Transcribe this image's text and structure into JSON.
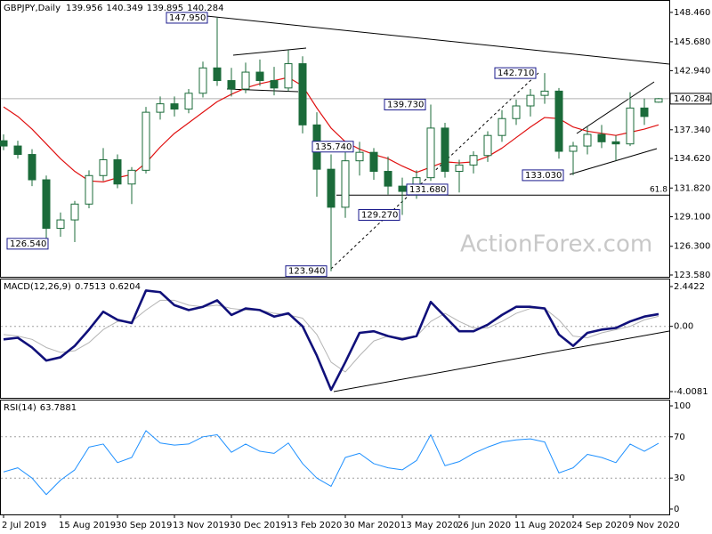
{
  "chart_data": [
    {
      "type": "candlestick",
      "title": "GBPJPY,Daily",
      "categories": [
        "2 Jul 2019",
        null,
        null,
        null,
        "15 Aug 2019",
        null,
        null,
        null,
        "30 Sep 2019",
        null,
        null,
        null,
        "13 Nov 2019",
        null,
        null,
        null,
        "30 Dec 2019",
        null,
        null,
        null,
        "13 Feb 2020",
        null,
        null,
        null,
        "30 Mar 2020",
        null,
        null,
        null,
        "13 May 2020",
        null,
        null,
        null,
        "26 Jun 2020",
        null,
        null,
        null,
        "11 Aug 2020",
        null,
        null,
        null,
        "24 Sep 2020",
        null,
        null,
        null,
        "9 Nov 2020",
        null,
        null
      ],
      "open": [
        136.3,
        135.8,
        135.0,
        132.6,
        128.0,
        128.8,
        130.3,
        133.0,
        134.5,
        132.2,
        133.5,
        139.0,
        139.8,
        139.3,
        140.8,
        143.2,
        142.0,
        141.2,
        142.8,
        142.0,
        141.3,
        143.6,
        137.8,
        133.6,
        130.0,
        134.4,
        135.2,
        133.4,
        132.0,
        131.5,
        132.8,
        137.5,
        133.4,
        134.0,
        134.9,
        136.8,
        138.4,
        139.6,
        140.6,
        141.0,
        135.3,
        135.8,
        136.9,
        136.2,
        136.0,
        139.4,
        139.956
      ],
      "high": [
        136.9,
        136.3,
        135.5,
        133.0,
        129.5,
        130.6,
        133.5,
        135.6,
        135.0,
        133.8,
        139.5,
        140.5,
        140.5,
        141.2,
        143.8,
        147.95,
        143.2,
        143.7,
        144.0,
        143.3,
        144.9,
        144.3,
        139.0,
        135.0,
        135.2,
        136.2,
        135.6,
        134.8,
        132.8,
        133.5,
        139.73,
        138.0,
        134.5,
        135.3,
        137.2,
        139.2,
        140.2,
        141.2,
        142.71,
        141.3,
        136.2,
        137.6,
        137.8,
        136.8,
        140.9,
        140.3,
        140.349
      ],
      "low": [
        135.4,
        134.6,
        132.0,
        126.54,
        127.2,
        126.7,
        129.9,
        132.5,
        131.8,
        130.3,
        133.2,
        138.3,
        138.6,
        138.9,
        140.4,
        141.5,
        140.5,
        140.8,
        141.5,
        140.6,
        141.0,
        137.0,
        131.0,
        123.94,
        129.0,
        133.0,
        132.6,
        131.2,
        129.27,
        130.8,
        132.5,
        132.8,
        131.4,
        133.2,
        134.3,
        136.2,
        137.8,
        138.6,
        139.8,
        134.6,
        133.03,
        135.0,
        135.6,
        134.4,
        135.8,
        137.8,
        139.895
      ],
      "close": [
        135.8,
        135.0,
        132.6,
        128.0,
        128.8,
        130.3,
        133.0,
        134.5,
        132.2,
        133.5,
        139.0,
        139.8,
        139.3,
        140.8,
        143.2,
        142.0,
        141.2,
        142.8,
        142.0,
        141.3,
        143.6,
        137.8,
        133.6,
        130.0,
        134.4,
        135.2,
        133.4,
        132.0,
        131.5,
        132.8,
        137.5,
        133.4,
        134.0,
        134.9,
        136.8,
        138.4,
        139.6,
        140.6,
        141.0,
        135.3,
        135.8,
        136.9,
        136.2,
        136.0,
        139.4,
        138.6,
        140.284
      ],
      "color": "#1b6b3a",
      "ma": {
        "color": "#e01010",
        "values": [
          139.5,
          138.6,
          137.4,
          136.0,
          134.6,
          133.4,
          132.5,
          132.4,
          132.8,
          133.1,
          134.2,
          135.7,
          137.0,
          138.0,
          139.0,
          140.0,
          140.7,
          141.3,
          141.7,
          142.0,
          142.3,
          141.5,
          139.4,
          137.5,
          136.2,
          135.5,
          135.0,
          134.6,
          133.9,
          133.3,
          133.8,
          134.3,
          134.2,
          134.3,
          134.8,
          135.6,
          136.6,
          137.6,
          138.5,
          138.4,
          137.6,
          137.2,
          137.0,
          136.8,
          137.1,
          137.4,
          137.8
        ]
      },
      "ylim": [
        123.41,
        149.55
      ],
      "yticks": [
        {
          "value": 148.46,
          "label": "148.460"
        },
        {
          "value": 145.68,
          "label": "145.680"
        },
        {
          "value": 142.94,
          "label": "142.940"
        },
        {
          "value": 137.34,
          "label": "137.340"
        },
        {
          "value": 134.62,
          "label": "134.620"
        },
        {
          "value": 131.82,
          "label": "131.820"
        },
        {
          "value": 129.1,
          "label": "129.100"
        },
        {
          "value": 126.3,
          "label": "126.300"
        },
        {
          "value": 123.58,
          "label": "123.580"
        }
      ],
      "annotations": [
        {
          "value": 147.95,
          "label": "147.950"
        },
        {
          "value": 142.71,
          "label": "142.710"
        },
        {
          "value": 139.73,
          "label": "139.730"
        },
        {
          "value": 135.74,
          "label": "135.740"
        },
        {
          "value": 133.03,
          "label": "133.030"
        },
        {
          "value": 131.68,
          "label": "131.680"
        },
        {
          "value": 129.27,
          "label": "129.270"
        },
        {
          "value": 126.54,
          "label": "126.540"
        },
        {
          "value": 123.94,
          "label": "123.940"
        }
      ],
      "fib": {
        "value": 131.15,
        "label": "61.8"
      },
      "watermark": "ActionForex.com"
    },
    {
      "type": "macd",
      "title": "MACD(12,26,9)",
      "series": [
        {
          "color": "#10107a",
          "values": [
            -0.8,
            -0.7,
            -1.3,
            -2.1,
            -1.9,
            -1.2,
            -0.2,
            0.9,
            0.4,
            0.2,
            2.2,
            2.1,
            1.3,
            1.0,
            1.2,
            1.6,
            0.7,
            1.1,
            1.0,
            0.6,
            0.8,
            0.0,
            -1.8,
            -3.9,
            -2.2,
            -0.4,
            -0.3,
            -0.6,
            -0.8,
            -0.6,
            1.5,
            0.6,
            -0.3,
            -0.3,
            0.1,
            0.7,
            1.2,
            1.2,
            1.1,
            -0.5,
            -1.2,
            -0.4,
            -0.2,
            -0.1,
            0.3,
            0.6,
            0.7513
          ]
        },
        {
          "color": "#b4b4b4",
          "values": [
            -0.5,
            -0.6,
            -0.8,
            -1.3,
            -1.6,
            -1.5,
            -1.0,
            -0.2,
            0.3,
            0.3,
            1.0,
            1.6,
            1.6,
            1.3,
            1.2,
            1.3,
            1.1,
            1.0,
            1.0,
            0.8,
            0.7,
            0.5,
            -0.5,
            -2.2,
            -2.8,
            -1.8,
            -0.9,
            -0.6,
            -0.7,
            -0.6,
            0.3,
            0.8,
            0.3,
            -0.1,
            -0.1,
            0.3,
            0.8,
            1.1,
            1.1,
            0.4,
            -0.6,
            -0.7,
            -0.4,
            -0.2,
            0.0,
            0.4,
            0.6204
          ]
        }
      ],
      "ylim": [
        -4.39,
        2.88
      ],
      "yticks": [
        2.4422,
        {
          "value": 0,
          "label": "0.00"
        },
        -4.0081
      ],
      "levels": [
        0
      ]
    },
    {
      "type": "rsi",
      "title": "RSI(14)",
      "series": [
        {
          "color": "#1e90ff",
          "values": [
            36,
            40,
            30,
            14,
            28,
            38,
            60,
            63,
            45,
            50,
            76,
            64,
            62,
            63,
            70,
            72,
            55,
            63,
            56,
            54,
            64,
            44,
            30,
            22,
            50,
            54,
            44,
            40,
            38,
            47,
            72,
            42,
            46,
            54,
            60,
            65,
            67,
            68,
            65,
            35,
            40,
            53,
            50,
            45,
            63,
            56,
            63.7881
          ]
        }
      ],
      "ylim": [
        -5.2,
        105.2
      ],
      "yticks": [
        100,
        70,
        30,
        0
      ],
      "levels": [
        70,
        30
      ]
    }
  ]
}
